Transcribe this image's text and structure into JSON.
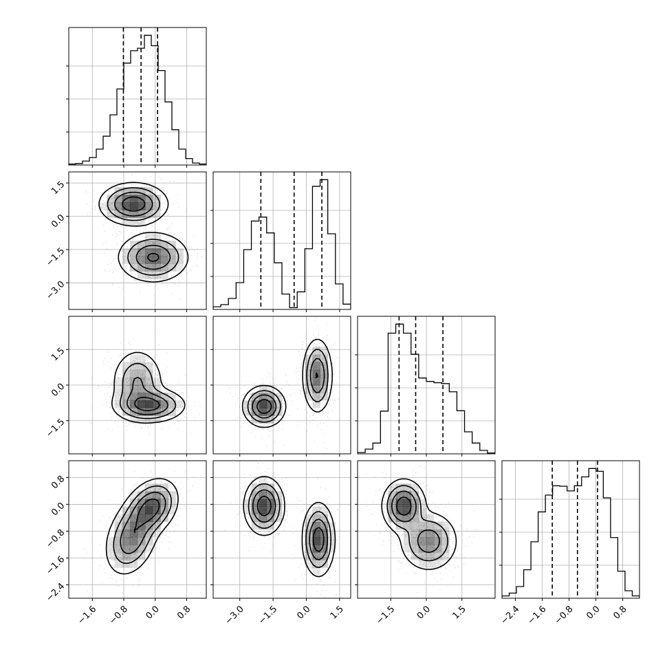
{
  "chart_data": {
    "type": "corner",
    "title": "",
    "grid": true,
    "n_params": 4,
    "colors": {
      "frame": "#000000",
      "grid": "#b0b0b0",
      "scatter": "#888888",
      "fill": "#000000"
    },
    "params": [
      {
        "index": 0,
        "range": [
          -2.2,
          1.3
        ],
        "ticks": [
          -1.6,
          -0.8,
          0.0,
          0.8
        ],
        "tick_labels": [
          "−1.6",
          "−0.8",
          "0.0",
          "0.8"
        ],
        "quantiles": [
          -0.81,
          -0.36,
          0.06
        ]
      },
      {
        "index": 1,
        "range": [
          -4.2,
          2.0
        ],
        "ticks": [
          -3.0,
          -1.5,
          0.0,
          1.5
        ],
        "tick_labels": [
          "−3.0",
          "−1.5",
          "0.0",
          "1.5"
        ],
        "quantiles": [
          -2.05,
          -0.55,
          0.7
        ]
      },
      {
        "index": 2,
        "range": [
          -2.9,
          2.9
        ],
        "ticks": [
          -1.5,
          0.0,
          1.5
        ],
        "tick_labels": [
          "−1.5",
          "0.0",
          "1.5"
        ],
        "quantiles": [
          -1.15,
          -0.45,
          0.7
        ]
      },
      {
        "index": 3,
        "range": [
          -2.8,
          1.3
        ],
        "ticks": [
          -2.4,
          -1.6,
          -0.8,
          0.0,
          0.8
        ],
        "tick_labels": [
          "−2.4",
          "−1.6",
          "−0.8",
          "0.0",
          "0.8"
        ],
        "quantiles": [
          -1.3,
          -0.55,
          0.05
        ]
      }
    ],
    "histograms": [
      {
        "param": 0,
        "counts": [
          0.2,
          0.3,
          0.8,
          1.5,
          3.2,
          5.8,
          10.1,
          15.3,
          20.5,
          23.0,
          23.5,
          26.1,
          24.0,
          19.0,
          12.7,
          7.1,
          3.2,
          1.3,
          0.4,
          0.2
        ]
      },
      {
        "param": 1,
        "counts": [
          0.6,
          1.1,
          2.5,
          6.1,
          13.6,
          20.1,
          21.0,
          17.4,
          10.6,
          3.5,
          0.4,
          4.0,
          13.8,
          28.0,
          29.5,
          17.2,
          5.8,
          1.2
        ]
      },
      {
        "param": 2,
        "counts": [
          0.3,
          1.1,
          2.5,
          9.9,
          28.0,
          30.1,
          28.0,
          23.1,
          17.6,
          16.8,
          16.5,
          16.3,
          14.4,
          10.0,
          5.1,
          2.5,
          0.8,
          0.2
        ]
      },
      {
        "param": 3,
        "counts": [
          0.5,
          1.1,
          2.5,
          6.1,
          12.1,
          18.5,
          22.1,
          24.1,
          24.0,
          23.0,
          24.1,
          26.0,
          27.8,
          27.2,
          21.5,
          13.0,
          5.8,
          1.6,
          0.5
        ]
      }
    ],
    "pairs": [
      {
        "x": 0,
        "y": 1,
        "modes": [
          {
            "mx": -0.55,
            "my": 0.55,
            "sx": 0.38,
            "sy": 0.42,
            "rho": 0.0,
            "w": 0.5
          },
          {
            "mx": -0.05,
            "my": -1.85,
            "sx": 0.4,
            "sy": 0.5,
            "rho": 0.0,
            "w": 0.5
          }
        ]
      },
      {
        "x": 0,
        "y": 2,
        "modes": [
          {
            "mx": -0.45,
            "my": 0.1,
            "sx": 0.3,
            "sy": 0.65,
            "rho": 0.0,
            "w": 0.45
          },
          {
            "mx": -0.15,
            "my": -0.85,
            "sx": 0.4,
            "sy": 0.32,
            "rho": 0.0,
            "w": 0.55
          }
        ]
      },
      {
        "x": 0,
        "y": 3,
        "modes": [
          {
            "mx": -0.1,
            "my": -0.1,
            "sx": 0.3,
            "sy": 0.38,
            "rho": 0.3,
            "w": 0.5
          },
          {
            "mx": -0.6,
            "my": -1.0,
            "sx": 0.3,
            "sy": 0.5,
            "rho": 0.3,
            "w": 0.5
          }
        ]
      },
      {
        "x": 1,
        "y": 2,
        "modes": [
          {
            "mx": -1.9,
            "my": -0.9,
            "sx": 0.42,
            "sy": 0.38,
            "rho": 0.0,
            "w": 0.5
          },
          {
            "mx": 0.5,
            "my": 0.4,
            "sx": 0.3,
            "sy": 0.7,
            "rho": 0.0,
            "w": 0.5
          }
        ]
      },
      {
        "x": 1,
        "y": 3,
        "modes": [
          {
            "mx": -1.9,
            "my": -0.05,
            "sx": 0.4,
            "sy": 0.38,
            "rho": 0.0,
            "w": 0.5
          },
          {
            "mx": 0.55,
            "my": -1.05,
            "sx": 0.32,
            "sy": 0.48,
            "rho": 0.0,
            "w": 0.5
          }
        ]
      },
      {
        "x": 2,
        "y": 3,
        "modes": [
          {
            "mx": -0.95,
            "my": -0.05,
            "sx": 0.4,
            "sy": 0.35,
            "rho": 0.0,
            "w": 0.5
          },
          {
            "mx": 0.1,
            "my": -1.1,
            "sx": 0.55,
            "sy": 0.4,
            "rho": 0.0,
            "w": 0.5
          }
        ]
      }
    ]
  }
}
